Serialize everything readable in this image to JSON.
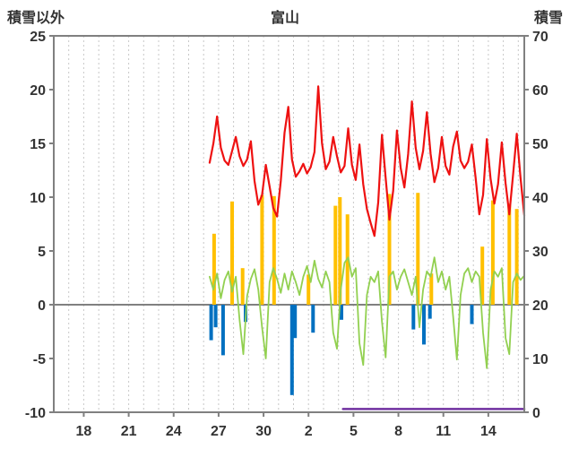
{
  "chart_data": {
    "type": "line",
    "title": "富山",
    "left_axis": {
      "label": "積雪以外",
      "min": -10,
      "max": 25,
      "ticks": [
        25,
        20,
        15,
        10,
        5,
        0,
        -5,
        -10
      ]
    },
    "right_axis": {
      "label": "積雪",
      "min": 0,
      "max": 70,
      "ticks": [
        70,
        60,
        50,
        40,
        30,
        20,
        10,
        0
      ]
    },
    "x_axis": {
      "min": 16.0,
      "max": 47.4,
      "ticks": [
        {
          "day": 18,
          "label": "18"
        },
        {
          "day": 21,
          "label": "21"
        },
        {
          "day": 24,
          "label": "24"
        },
        {
          "day": 27,
          "label": "27"
        },
        {
          "day": 30,
          "label": "30"
        },
        {
          "day": 33,
          "label": "2"
        },
        {
          "day": 36,
          "label": "5"
        },
        {
          "day": 39,
          "label": "8"
        },
        {
          "day": 42,
          "label": "11"
        },
        {
          "day": 45,
          "label": "14"
        }
      ],
      "grid": true
    },
    "colors": {
      "grid": "#c8c8c8",
      "axis": "#808080",
      "text": "#333333",
      "red": "#ee1111",
      "green": "#92d050",
      "orange": "#ffc000",
      "blue": "#0070c0",
      "purple": "#7030a0"
    },
    "series": [
      {
        "name": "orange-bars",
        "type": "bar",
        "axis": "left",
        "color": "#ffc000",
        "points": [
          [
            26.7,
            6.6
          ],
          [
            27.9,
            9.6
          ],
          [
            28.6,
            3.4
          ],
          [
            29.9,
            10.2
          ],
          [
            30.7,
            10.1
          ],
          [
            33.0,
            2.8
          ],
          [
            34.8,
            9.2
          ],
          [
            35.1,
            10.0
          ],
          [
            35.6,
            8.4
          ],
          [
            38.4,
            10.3
          ],
          [
            40.3,
            10.4
          ],
          [
            41.2,
            2.9
          ],
          [
            44.6,
            5.4
          ],
          [
            45.3,
            9.7
          ],
          [
            46.4,
            9.4
          ],
          [
            46.9,
            8.9
          ]
        ]
      },
      {
        "name": "blue-bars",
        "type": "bar",
        "axis": "left",
        "color": "#0070c0",
        "points": [
          [
            26.5,
            -3.3
          ],
          [
            26.8,
            -2.1
          ],
          [
            27.3,
            -4.7
          ],
          [
            28.8,
            -1.6
          ],
          [
            31.9,
            -8.4
          ],
          [
            32.1,
            -3.1
          ],
          [
            33.3,
            -2.6
          ],
          [
            35.2,
            -1.4
          ],
          [
            40.0,
            -2.3
          ],
          [
            40.7,
            -3.7
          ],
          [
            41.1,
            -1.3
          ],
          [
            43.9,
            -1.8
          ]
        ]
      },
      {
        "name": "green-line",
        "type": "line",
        "axis": "left",
        "color": "#92d050",
        "width": 1.8,
        "start": 26.4,
        "step": 0.25,
        "values": [
          2.6,
          1.4,
          2.9,
          0.6,
          2.3,
          3.1,
          1.2,
          2.6,
          -1.4,
          -4.6,
          0.8,
          2.4,
          3.3,
          1.4,
          -2.1,
          -5.0,
          2.1,
          3.4,
          2.4,
          1.1,
          2.9,
          1.4,
          3.1,
          2.1,
          0.9,
          2.6,
          3.6,
          2.1,
          4.1,
          2.4,
          1.6,
          3.1,
          2.1,
          -2.6,
          -4.1,
          1.4,
          3.9,
          4.4,
          2.6,
          3.4,
          -3.6,
          -5.6,
          0.9,
          2.6,
          2.1,
          3.1,
          -1.6,
          -4.9,
          2.6,
          3.1,
          1.4,
          2.6,
          3.3,
          2.1,
          0.9,
          2.6,
          -2.1,
          1.4,
          3.1,
          2.6,
          4.4,
          2.1,
          3.1,
          1.4,
          2.6,
          -1.1,
          -5.1,
          0.9,
          2.9,
          3.4,
          2.1,
          3.1,
          2.6,
          -2.6,
          -5.9,
          1.4,
          3.1,
          2.6,
          3.4,
          -3.1,
          -4.6,
          2.1,
          2.9,
          2.3,
          2.7
        ]
      },
      {
        "name": "red-line",
        "type": "line",
        "axis": "left",
        "color": "#ee1111",
        "width": 2.2,
        "start": 26.4,
        "step": 0.25,
        "values": [
          13.2,
          15.0,
          17.5,
          14.6,
          13.4,
          13.0,
          14.3,
          15.6,
          13.8,
          12.9,
          13.5,
          15.2,
          11.5,
          9.3,
          10.2,
          13.0,
          11.0,
          9.0,
          8.2,
          11.5,
          16.0,
          18.4,
          13.5,
          11.9,
          12.4,
          13.1,
          12.2,
          12.8,
          14.2,
          20.3,
          15.0,
          12.6,
          13.3,
          15.6,
          13.8,
          12.3,
          12.9,
          16.4,
          13.0,
          11.6,
          14.9,
          11.2,
          8.9,
          7.6,
          6.4,
          9.5,
          15.8,
          11.8,
          7.9,
          10.6,
          16.2,
          12.7,
          10.9,
          14.0,
          18.9,
          14.6,
          12.6,
          14.3,
          17.9,
          14.0,
          11.4,
          12.7,
          15.6,
          12.9,
          12.1,
          14.7,
          16.1,
          13.4,
          12.7,
          13.3,
          14.9,
          11.8,
          8.4,
          10.2,
          15.4,
          11.7,
          9.4,
          11.2,
          15.1,
          11.3,
          8.4,
          12.1,
          15.9,
          11.8,
          8.3
        ]
      },
      {
        "name": "purple-line",
        "type": "line",
        "axis": "right",
        "color": "#7030a0",
        "width": 2.5,
        "span": [
          35.3,
          47.4
        ],
        "value": 0.6
      }
    ]
  }
}
